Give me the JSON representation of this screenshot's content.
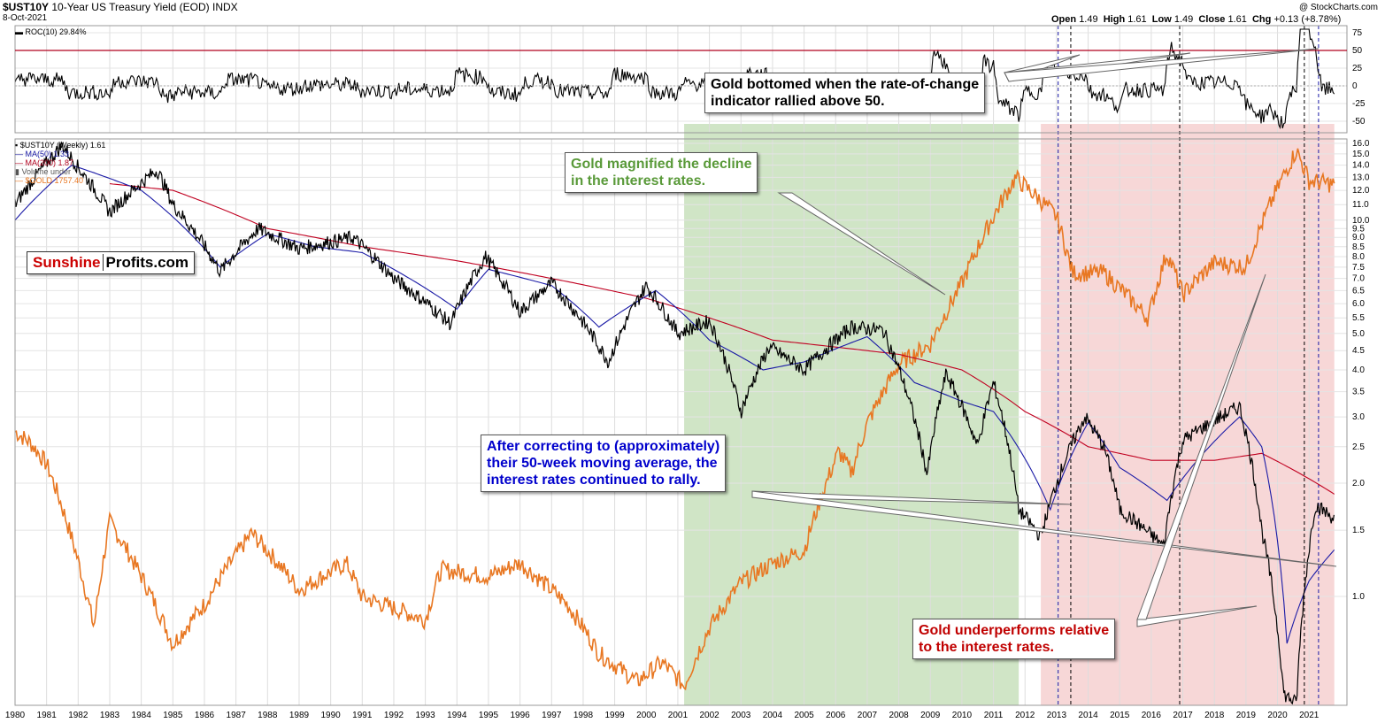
{
  "header": {
    "symbol": "$UST10Y",
    "name": "10-Year US Treasury Yield (EOD)",
    "exchange": "INDX",
    "date": "8-Oct-2021",
    "credit": "@ StockCharts.com",
    "ohlc": {
      "open_label": "Open",
      "open": "1.49",
      "high_label": "High",
      "high": "1.61",
      "low_label": "Low",
      "low": "1.49",
      "close_label": "Close",
      "close": "1.61",
      "chg_label": "Chg",
      "chg": "+0.13 (+8.78%)"
    }
  },
  "roc_panel": {
    "legend": "ROC(10) 29.84%",
    "ticks": [
      "75",
      "50",
      "25",
      "0",
      "-25",
      "-50"
    ]
  },
  "main_legend": {
    "items": [
      {
        "label": "$UST10Y (Weekly) 1.61",
        "color": "#000000"
      },
      {
        "label": "MA(50) 1.33",
        "color": "#1a1aa6"
      },
      {
        "label": "MA(200) 1.87",
        "color": "#b0001e"
      },
      {
        "label": "Volume under",
        "color": "#555555"
      },
      {
        "label": "$GOLD 1757.40",
        "color": "#e87722"
      }
    ]
  },
  "logo": {
    "part1": "Sunshine",
    "part2": "Profits.com",
    "color1": "#cc0000"
  },
  "annotations": {
    "roc_note": "Gold bottomed when the rate-of-change\nindicator rallied above 50.",
    "green_note": "Gold magnified the decline\nin the interest rates.",
    "blue_note": "After correcting to (approximately)\ntheir 50-week moving average, the\ninterest rates continued to rally.",
    "red_note": "Gold underperforms relative\nto the interest rates."
  },
  "colors": {
    "yield": "#000000",
    "ma50": "#1a1aa6",
    "ma200": "#c00020",
    "gold": "#e87722",
    "green_zone": "#c8e0bc",
    "red_zone": "#f6d0d0",
    "green_text": "#5a9a3a",
    "blue_text": "#0000cc",
    "red_text": "#cc0000"
  },
  "chart_data": {
    "type": "line",
    "x_years": [
      "1980",
      "1981",
      "1982",
      "1983",
      "1984",
      "1985",
      "1986",
      "1987",
      "1988",
      "1989",
      "1990",
      "1991",
      "1992",
      "1993",
      "1994",
      "1995",
      "1996",
      "1997",
      "1998",
      "1999",
      "2000",
      "2001",
      "2002",
      "2003",
      "2004",
      "2005",
      "2006",
      "2007",
      "2008",
      "2009",
      "2010",
      "2011",
      "2012",
      "2013",
      "2014",
      "2015",
      "2016",
      "2017",
      "2018",
      "2019",
      "2020",
      "2021"
    ],
    "y_axis_ticks": [
      "16.0",
      "15.0",
      "14.0",
      "13.0",
      "12.0",
      "11.0",
      "10.0",
      "9.5",
      "9.0",
      "8.5",
      "8.0",
      "7.5",
      "7.0",
      "6.5",
      "6.0",
      "5.5",
      "5.0",
      "4.5",
      "4.0",
      "3.5",
      "3.0",
      "2.5",
      "2.0",
      "1.5",
      "1.0"
    ],
    "log_scale": true,
    "shaded_periods": [
      {
        "label": "green",
        "start": 2001.2,
        "end": 2011.8
      },
      {
        "label": "red",
        "start": 2012.5,
        "end": 2021.8
      }
    ],
    "series": [
      {
        "name": "$UST10Y (Weekly)",
        "x": [
          1980,
          1981.5,
          1982,
          1983,
          1984.5,
          1985,
          1986.5,
          1987.7,
          1989,
          1990.7,
          1992,
          1993.8,
          1994.9,
          1996,
          1997,
          1998.8,
          2000,
          2001,
          2002,
          2003,
          2003.9,
          2005,
          2006.5,
          2007.5,
          2008.9,
          2009.5,
          2010.5,
          2011,
          2011.8,
          2012.5,
          2013,
          2013.9,
          2014.5,
          2015,
          2016.4,
          2017,
          2018.8,
          2019.5,
          2020.2,
          2020.6,
          2021.2,
          2021.8
        ],
        "y": [
          11.0,
          15.8,
          13.8,
          10.5,
          13.6,
          11.0,
          7.3,
          9.5,
          8.4,
          9.0,
          7.0,
          5.3,
          8.0,
          5.7,
          6.8,
          4.2,
          6.7,
          5.0,
          5.4,
          3.1,
          4.6,
          4.0,
          5.2,
          5.1,
          2.1,
          3.9,
          2.5,
          3.7,
          1.7,
          1.44,
          2.0,
          3.0,
          2.5,
          1.7,
          1.36,
          2.6,
          3.2,
          1.5,
          0.55,
          0.52,
          1.75,
          1.61
        ]
      },
      {
        "name": "MA(50)",
        "x": [
          1980,
          1981.8,
          1984,
          1986.5,
          1988,
          1989.5,
          1991,
          1994,
          1995,
          1997,
          1998.5,
          2000.3,
          2002,
          2003.7,
          2005,
          2007,
          2008.5,
          2010,
          2011,
          2012.8,
          2014,
          2015,
          2016.5,
          2018.8,
          2019.5,
          2020.3,
          2021,
          2021.8
        ],
        "y": [
          10.0,
          14.0,
          12.0,
          7.5,
          9.2,
          8.5,
          8.2,
          5.8,
          7.4,
          6.7,
          5.2,
          6.5,
          4.8,
          4.0,
          4.2,
          4.9,
          3.7,
          3.3,
          3.1,
          1.7,
          2.9,
          2.2,
          1.8,
          3.0,
          2.5,
          0.75,
          1.1,
          1.33
        ]
      },
      {
        "name": "MA(200)",
        "x": [
          1983,
          1985,
          1988,
          1991,
          1994,
          1997,
          2000,
          2002,
          2004,
          2006,
          2008,
          2010,
          2012,
          2014,
          2016,
          2018,
          2019.5,
          2021.8
        ],
        "y": [
          12.5,
          12.0,
          9.5,
          8.5,
          7.8,
          7.0,
          6.2,
          5.5,
          4.8,
          4.6,
          4.4,
          4.0,
          3.1,
          2.5,
          2.3,
          2.3,
          2.4,
          1.87
        ]
      },
      {
        "name": "$GOLD",
        "x": [
          1980,
          1980.5,
          1981,
          1982.5,
          1983,
          1985,
          1986,
          1987.5,
          1988,
          1989,
          1990.5,
          1991,
          1993,
          1993.5,
          1995,
          1996,
          1997.5,
          1998.5,
          1999.7,
          2000.5,
          2001.2,
          2002,
          2003,
          2004,
          2005,
          2006.1,
          2006.5,
          2007,
          2008,
          2009,
          2010,
          2011.7,
          2012.5,
          2013,
          2013.5,
          2014.5,
          2015.9,
          2016.5,
          2017,
          2018,
          2019,
          2020.6,
          2021,
          2021.8
        ],
        "y": [
          680,
          650,
          600,
          320,
          480,
          300,
          350,
          460,
          430,
          370,
          410,
          360,
          330,
          400,
          390,
          410,
          350,
          290,
          260,
          280,
          256,
          320,
          380,
          410,
          430,
          630,
          580,
          700,
          880,
          950,
          1200,
          1800,
          1650,
          1550,
          1250,
          1250,
          1050,
          1350,
          1150,
          1300,
          1280,
          2000,
          1780,
          1757
        ]
      }
    ]
  }
}
